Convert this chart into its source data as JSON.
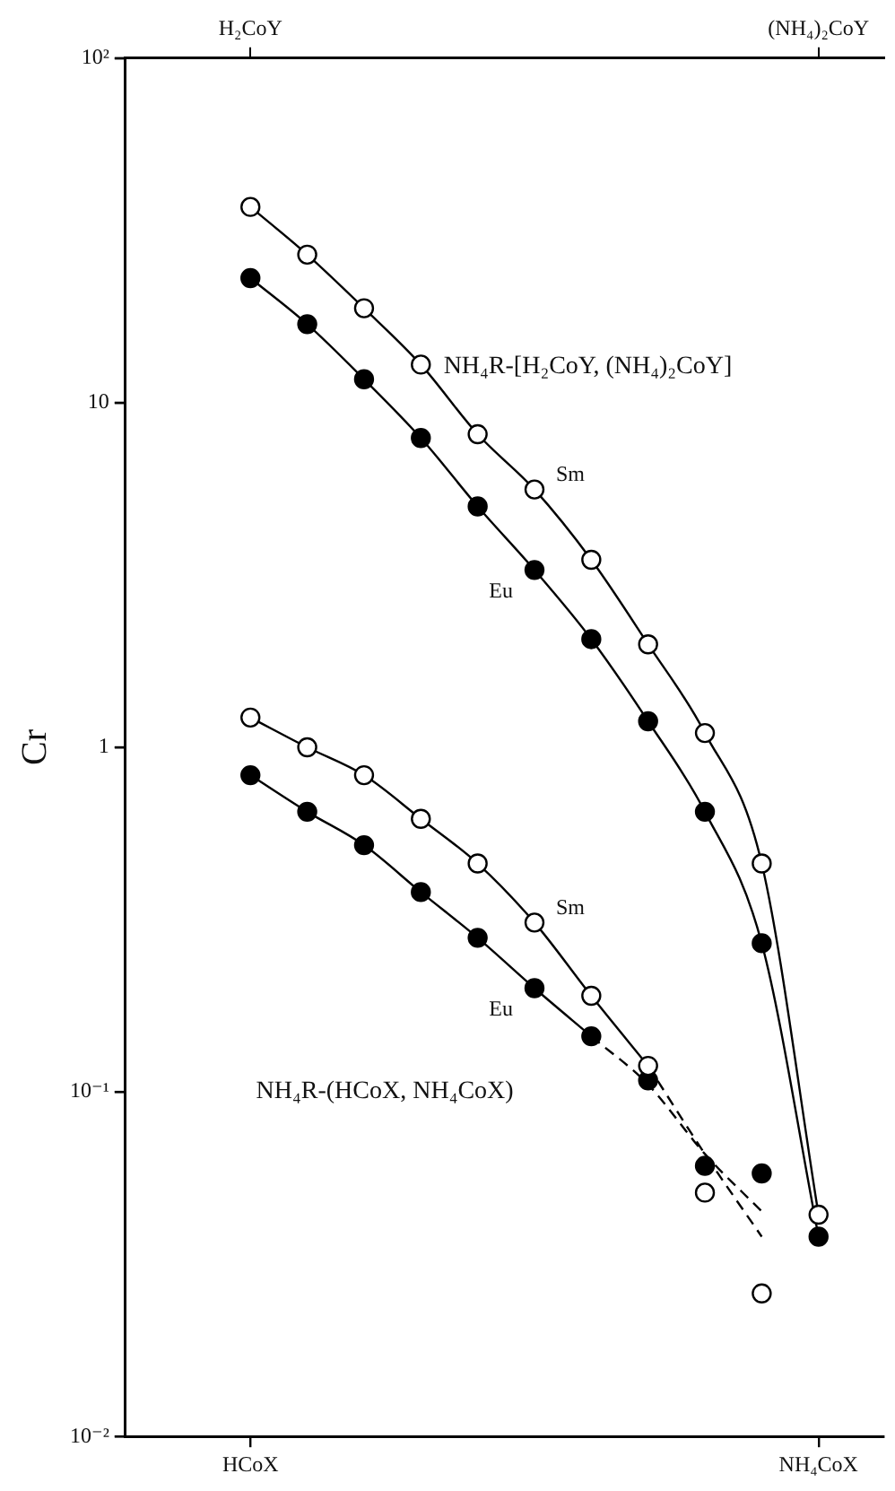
{
  "chart_data": {
    "type": "scatter",
    "ylabel": "Cr",
    "log": "y",
    "grid": false,
    "legend": false,
    "categories": [
      "HCoX",
      null,
      null,
      null,
      null,
      null,
      null,
      null,
      null,
      null,
      "NH₄CoX"
    ],
    "ylim": [
      0.01,
      100
    ],
    "yticks": [
      {
        "value": 0.01,
        "label": "10⁻²"
      },
      {
        "value": 0.1,
        "label": "10⁻¹"
      },
      1,
      10,
      {
        "value": 100,
        "label": "10²"
      }
    ],
    "series": [
      {
        "name": "Sm",
        "type": "scatter",
        "color": "#ffffff",
        "marker": "circle",
        "values": [
          37,
          26.9,
          18.8,
          12.9,
          8.1,
          5.6,
          3.5,
          1.99,
          1.1,
          0.46,
          0.044
        ]
      },
      {
        "name": "Eu",
        "type": "scatter",
        "color": "#000000",
        "marker": "circle",
        "values": [
          23,
          16.9,
          11.7,
          7.9,
          5,
          3.27,
          2.06,
          1.19,
          0.65,
          0.27,
          0.038
        ]
      },
      {
        "type": "line",
        "color": "#000000",
        "marker": "none",
        "line_style": "solid",
        "values": [
          37,
          26.9,
          18.8,
          12.9,
          8.1,
          5.6,
          3.5,
          1.99,
          1.1,
          0.46,
          0.044
        ]
      },
      {
        "type": "line",
        "color": "#000000",
        "marker": "none",
        "line_style": "solid",
        "values": [
          23,
          16.9,
          11.7,
          7.9,
          5,
          3.27,
          2.06,
          1.19,
          0.65,
          0.27,
          0.038
        ]
      },
      {
        "name": "Sm",
        "type": "scatter",
        "color": "#ffffff",
        "marker": "circle",
        "values": [
          1.22,
          1,
          0.83,
          0.62,
          0.46,
          0.31,
          0.19,
          0.119,
          0.051,
          0.026,
          null
        ]
      },
      {
        "name": "Eu",
        "type": "scatter",
        "color": "#000000",
        "marker": "circle",
        "values": [
          0.83,
          0.65,
          0.52,
          0.38,
          0.28,
          0.2,
          0.145,
          0.108,
          0.061,
          0.058,
          null
        ]
      },
      {
        "type": "line",
        "color": "#000000",
        "marker": "none",
        "line_style": "solid",
        "values": [
          1.22,
          1,
          0.83,
          0.62,
          0.46,
          0.31,
          0.19,
          0.119,
          null,
          null,
          null
        ]
      },
      {
        "type": "line",
        "color": "#000000",
        "marker": "none",
        "line_style": "solid",
        "values": [
          0.83,
          0.65,
          0.52,
          0.38,
          0.28,
          0.2,
          0.145,
          null,
          null,
          null,
          null
        ]
      },
      {
        "type": "line",
        "color": "#000000",
        "marker": "none",
        "line_style": "dashed",
        "values": [
          null,
          null,
          null,
          null,
          null,
          null,
          null,
          0.119,
          0.066,
          0.038,
          null
        ]
      },
      {
        "type": "line",
        "color": "#000000",
        "marker": "none",
        "line_style": "dashed",
        "values": [
          null,
          null,
          null,
          null,
          null,
          null,
          0.145,
          0.105,
          0.066,
          0.045,
          null
        ]
      }
    ],
    "annotations": [
      "H₂CoY",
      "(NH₄)₂CoY",
      "NH₄R-[H₂CoY, (NH₄)₂CoY]",
      "NH₄R-(HCoX, NH₄CoX)"
    ]
  }
}
